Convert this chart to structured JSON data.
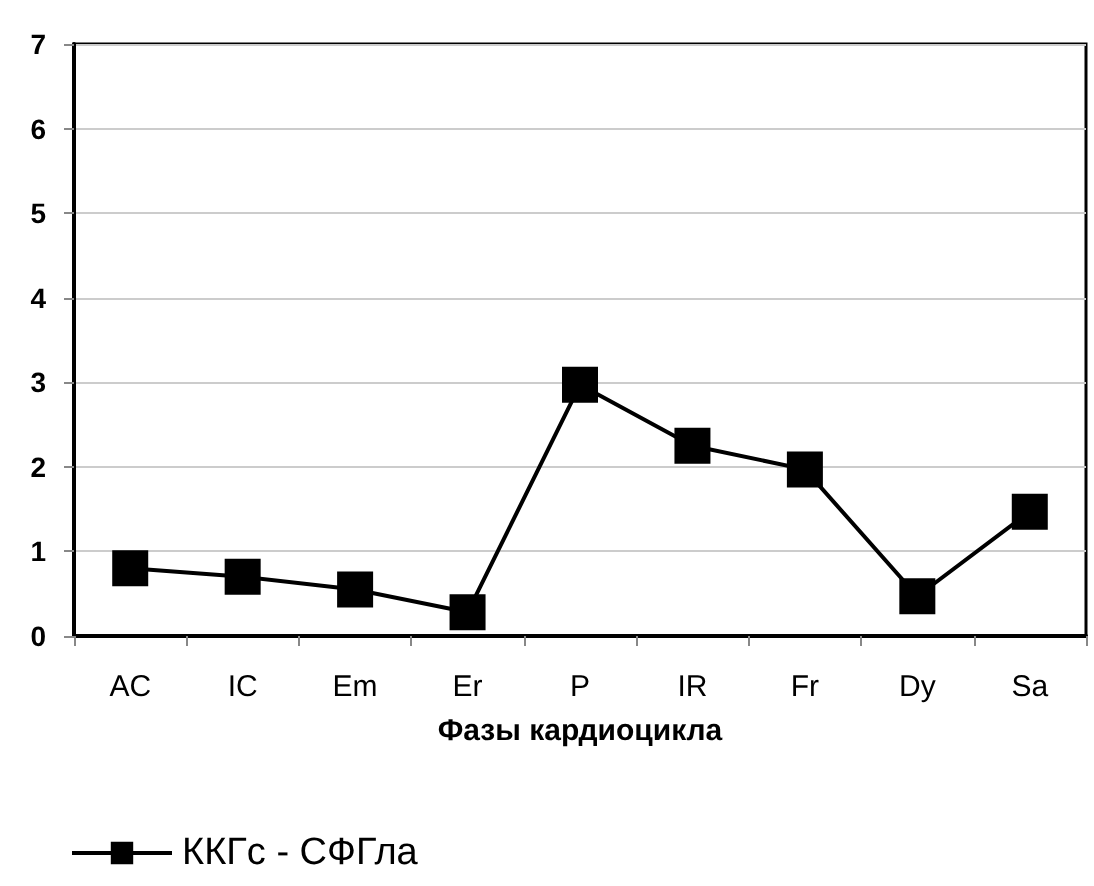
{
  "chart_data": {
    "type": "line",
    "xlabel": "Фазы кардиоцикла",
    "categories": [
      "AC",
      "IC",
      "Em",
      "Er",
      "P",
      "IR",
      "Fr",
      "Dy",
      "Sa"
    ],
    "series": [
      {
        "name": "ККГс - СФГла",
        "color": "#000000",
        "values": [
          0.8,
          0.7,
          0.55,
          0.28,
          2.97,
          2.25,
          1.97,
          0.47,
          1.47
        ]
      }
    ],
    "ylim": [
      0,
      7
    ],
    "yticks": [
      0,
      1,
      2,
      3,
      4,
      5,
      6,
      7
    ],
    "grid": "y",
    "legend": "bottom left",
    "marker": "square",
    "line_style": "solid"
  }
}
